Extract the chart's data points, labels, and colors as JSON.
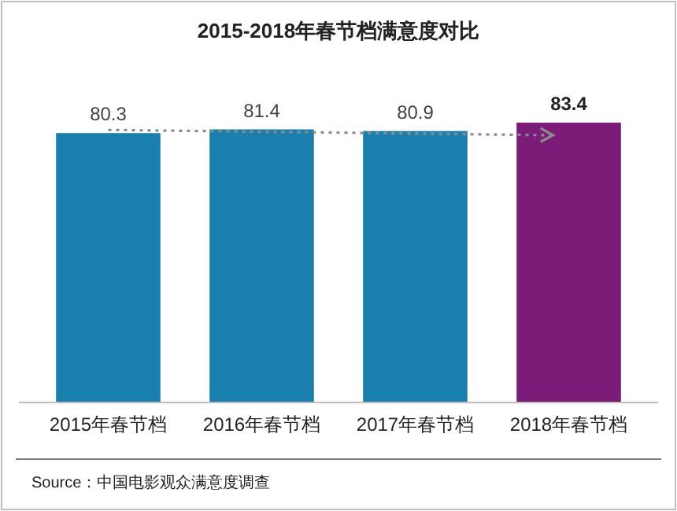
{
  "chart_data": {
    "type": "bar",
    "title": "2015-2018年春节档满意度对比",
    "categories": [
      "2015年春节档",
      "2016年春节档",
      "2017年春节档",
      "2018年春节档"
    ],
    "values": [
      80.3,
      81.4,
      80.9,
      83.4
    ],
    "colors": [
      "#1b7fad",
      "#1b7fad",
      "#1b7fad",
      "#7a1c78"
    ],
    "data_labels": true,
    "annotations": [
      "Source：中国电影观众满意度调查"
    ]
  }
}
